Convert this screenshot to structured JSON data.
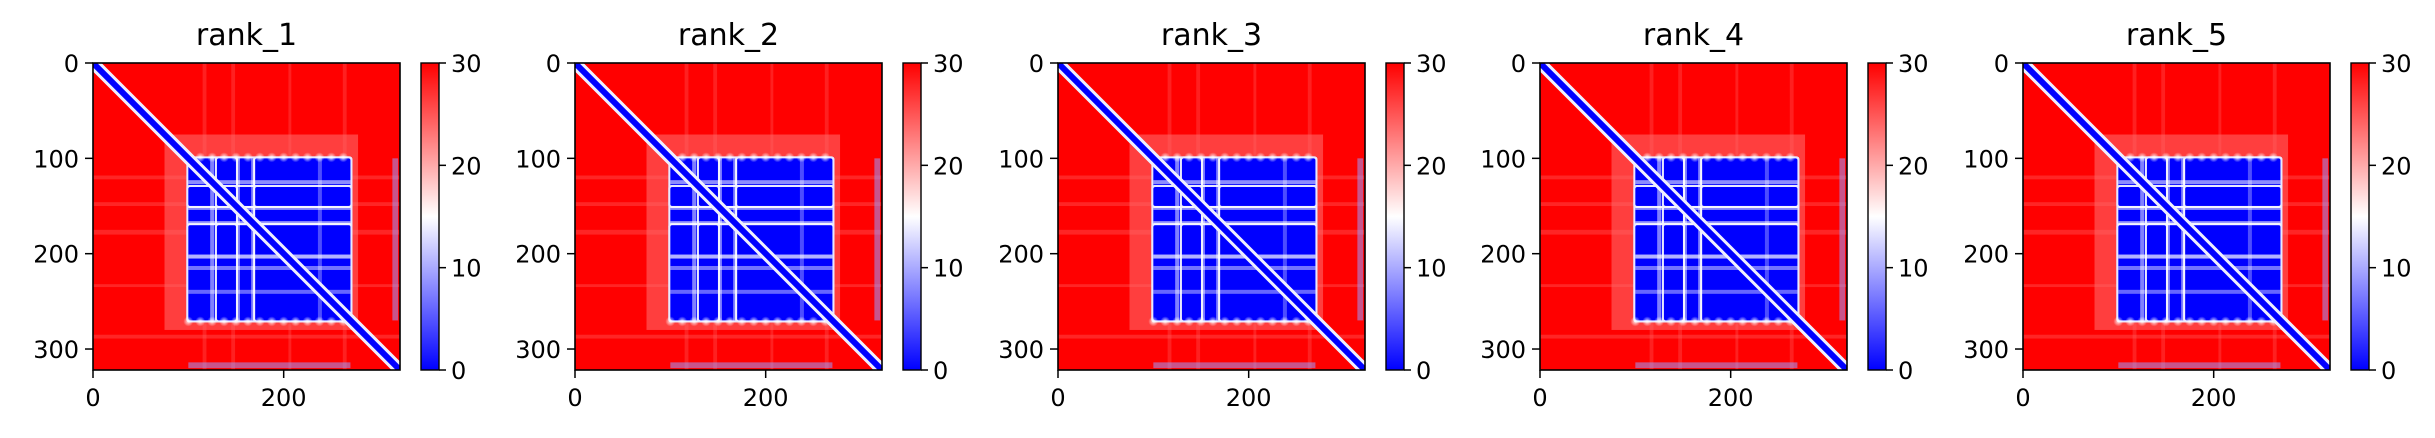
{
  "figure": {
    "colors": {
      "low": "#0000ff",
      "mid": "#ffffff",
      "high": "#ff0000"
    },
    "colormap": "bwr"
  },
  "chart_data": [
    {
      "type": "heatmap",
      "title": "rank_1",
      "matrix_size": 322,
      "xlim": [
        0,
        322
      ],
      "ylim": [
        322,
        0
      ],
      "x_ticks": [
        0,
        200
      ],
      "y_ticks": [
        0,
        100,
        200,
        300
      ],
      "colorbar": {
        "range": [
          0,
          30
        ],
        "ticks": [
          0,
          10,
          20,
          30
        ]
      },
      "blocks": [
        [
          100,
          270
        ],
        [
          130,
          150
        ],
        [
          170,
          270
        ]
      ],
      "diagonal_value": 0,
      "background_value": 30
    },
    {
      "type": "heatmap",
      "title": "rank_2",
      "matrix_size": 322,
      "xlim": [
        0,
        322
      ],
      "ylim": [
        322,
        0
      ],
      "x_ticks": [
        0,
        200
      ],
      "y_ticks": [
        0,
        100,
        200,
        300
      ],
      "colorbar": {
        "range": [
          0,
          30
        ],
        "ticks": [
          0,
          10,
          20,
          30
        ]
      },
      "blocks": [
        [
          100,
          270
        ],
        [
          130,
          150
        ],
        [
          170,
          270
        ]
      ],
      "diagonal_value": 0,
      "background_value": 30
    },
    {
      "type": "heatmap",
      "title": "rank_3",
      "matrix_size": 322,
      "xlim": [
        0,
        322
      ],
      "ylim": [
        322,
        0
      ],
      "x_ticks": [
        0,
        200
      ],
      "y_ticks": [
        0,
        100,
        200,
        300
      ],
      "colorbar": {
        "range": [
          0,
          30
        ],
        "ticks": [
          0,
          10,
          20,
          30
        ]
      },
      "blocks": [
        [
          100,
          270
        ],
        [
          130,
          150
        ],
        [
          170,
          270
        ]
      ],
      "diagonal_value": 0,
      "background_value": 30
    },
    {
      "type": "heatmap",
      "title": "rank_4",
      "matrix_size": 322,
      "xlim": [
        0,
        322
      ],
      "ylim": [
        322,
        0
      ],
      "x_ticks": [
        0,
        200
      ],
      "y_ticks": [
        0,
        100,
        200,
        300
      ],
      "colorbar": {
        "range": [
          0,
          30
        ],
        "ticks": [
          0,
          10,
          20,
          30
        ]
      },
      "blocks": [
        [
          100,
          270
        ],
        [
          130,
          150
        ],
        [
          170,
          270
        ]
      ],
      "diagonal_value": 0,
      "background_value": 30
    },
    {
      "type": "heatmap",
      "title": "rank_5",
      "matrix_size": 322,
      "xlim": [
        0,
        322
      ],
      "ylim": [
        322,
        0
      ],
      "x_ticks": [
        0,
        200
      ],
      "y_ticks": [
        0,
        100,
        200,
        300
      ],
      "colorbar": {
        "range": [
          0,
          30
        ],
        "ticks": [
          0,
          10,
          20,
          30
        ]
      },
      "blocks": [
        [
          100,
          270
        ],
        [
          130,
          150
        ],
        [
          170,
          270
        ]
      ],
      "diagonal_value": 0,
      "background_value": 30
    }
  ]
}
